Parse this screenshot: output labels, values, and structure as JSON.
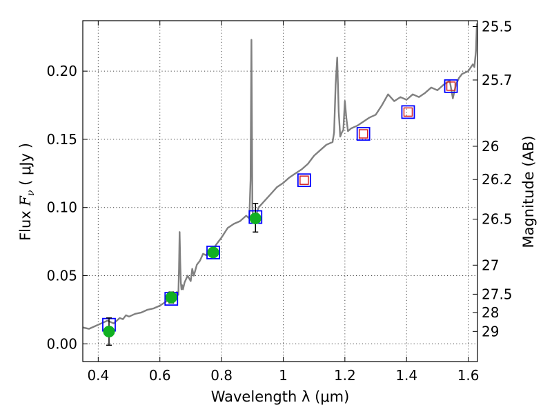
{
  "chart_data": {
    "type": "line",
    "xlabel": "Wavelength  λ (μm)",
    "ylabel_left": "Flux  F_ν  ( μJy )",
    "ylabel_left_parts": {
      "prefix": "Flux  ",
      "var": "F",
      "sub": "ν",
      "unit": "  ( μJy )"
    },
    "ylabel_right": "Magnitude (AB)",
    "xlim": [
      0.35,
      1.63
    ],
    "ylim": [
      -0.013,
      0.237
    ],
    "grid": true,
    "x_ticks": [
      {
        "value": 0.4,
        "label": "0.4"
      },
      {
        "value": 0.6,
        "label": "0.6"
      },
      {
        "value": 0.8,
        "label": "0.8"
      },
      {
        "value": 1.0,
        "label": "1"
      },
      {
        "value": 1.2,
        "label": "1.2"
      },
      {
        "value": 1.4,
        "label": "1.4"
      },
      {
        "value": 1.6,
        "label": "1.6"
      }
    ],
    "y_ticks": [
      {
        "value": 0.0,
        "label": "0.00"
      },
      {
        "value": 0.05,
        "label": "0.05"
      },
      {
        "value": 0.1,
        "label": "0.10"
      },
      {
        "value": 0.15,
        "label": "0.15"
      },
      {
        "value": 0.2,
        "label": "0.20"
      }
    ],
    "right_ticks": [
      {
        "flux": 0.2327,
        "label": "25.5"
      },
      {
        "flux": 0.1935,
        "label": "25.7"
      },
      {
        "flux": 0.1449,
        "label": "26"
      },
      {
        "flux": 0.1205,
        "label": "26.2"
      },
      {
        "flux": 0.0914,
        "label": "26.5"
      },
      {
        "flux": 0.0577,
        "label": "27"
      },
      {
        "flux": 0.0364,
        "label": "27.5"
      },
      {
        "flux": 0.023,
        "label": "28"
      },
      {
        "flux": 0.0091,
        "label": "29"
      }
    ],
    "series": [
      {
        "kind": "spectrum",
        "color": "#808080",
        "x": [
          0.35,
          0.37,
          0.39,
          0.41,
          0.43,
          0.45,
          0.47,
          0.48,
          0.49,
          0.5,
          0.52,
          0.54,
          0.56,
          0.58,
          0.6,
          0.62,
          0.64,
          0.65,
          0.655,
          0.66,
          0.662,
          0.664,
          0.666,
          0.668,
          0.67,
          0.672,
          0.675,
          0.68,
          0.69,
          0.7,
          0.705,
          0.71,
          0.72,
          0.73,
          0.74,
          0.75,
          0.76,
          0.77,
          0.78,
          0.79,
          0.8,
          0.82,
          0.84,
          0.86,
          0.88,
          0.89,
          0.894,
          0.897,
          0.9,
          0.903,
          0.906,
          0.91,
          0.92,
          0.94,
          0.96,
          0.98,
          1.0,
          1.02,
          1.04,
          1.06,
          1.08,
          1.1,
          1.12,
          1.14,
          1.16,
          1.165,
          1.17,
          1.175,
          1.18,
          1.185,
          1.19,
          1.195,
          1.2,
          1.205,
          1.21,
          1.22,
          1.24,
          1.26,
          1.28,
          1.3,
          1.32,
          1.34,
          1.36,
          1.38,
          1.4,
          1.42,
          1.44,
          1.46,
          1.48,
          1.5,
          1.52,
          1.54,
          1.55,
          1.56,
          1.57,
          1.58,
          1.6,
          1.615,
          1.62,
          1.625,
          1.628
        ],
        "y": [
          0.012,
          0.011,
          0.013,
          0.015,
          0.017,
          0.015,
          0.019,
          0.018,
          0.021,
          0.02,
          0.022,
          0.023,
          0.025,
          0.026,
          0.028,
          0.031,
          0.035,
          0.033,
          0.038,
          0.036,
          0.055,
          0.082,
          0.06,
          0.045,
          0.04,
          0.043,
          0.04,
          0.045,
          0.05,
          0.046,
          0.055,
          0.05,
          0.058,
          0.061,
          0.066,
          0.065,
          0.069,
          0.067,
          0.072,
          0.075,
          0.078,
          0.085,
          0.088,
          0.09,
          0.094,
          0.092,
          0.12,
          0.223,
          0.1,
          0.089,
          0.094,
          0.093,
          0.1,
          0.105,
          0.11,
          0.115,
          0.118,
          0.122,
          0.125,
          0.128,
          0.132,
          0.138,
          0.142,
          0.146,
          0.148,
          0.155,
          0.19,
          0.21,
          0.17,
          0.152,
          0.155,
          0.157,
          0.178,
          0.165,
          0.156,
          0.158,
          0.16,
          0.163,
          0.166,
          0.168,
          0.175,
          0.183,
          0.178,
          0.181,
          0.179,
          0.183,
          0.181,
          0.184,
          0.188,
          0.186,
          0.19,
          0.193,
          0.18,
          0.19,
          0.195,
          0.198,
          0.2,
          0.205,
          0.203,
          0.215,
          0.235
        ]
      },
      {
        "kind": "model-squares",
        "color": "#0000ff",
        "x": [
          0.435,
          0.637,
          0.773,
          0.91,
          1.068,
          1.26,
          1.405,
          1.544
        ],
        "y": [
          0.014,
          0.033,
          0.067,
          0.093,
          0.12,
          0.154,
          0.17,
          0.189
        ]
      },
      {
        "kind": "open-squares",
        "color": "#d42020",
        "x": [
          1.068,
          1.26,
          1.405,
          1.544
        ],
        "y": [
          0.12,
          0.154,
          0.17,
          0.189
        ]
      },
      {
        "kind": "measured-points",
        "color": "#11b022",
        "x": [
          0.435,
          0.637,
          0.773,
          0.91
        ],
        "y": [
          0.009,
          0.034,
          0.067,
          0.092
        ],
        "yerr_low": [
          0.01,
          0.004,
          0.003,
          0.01
        ],
        "yerr_high": [
          0.01,
          0.004,
          0.003,
          0.011
        ]
      }
    ]
  }
}
